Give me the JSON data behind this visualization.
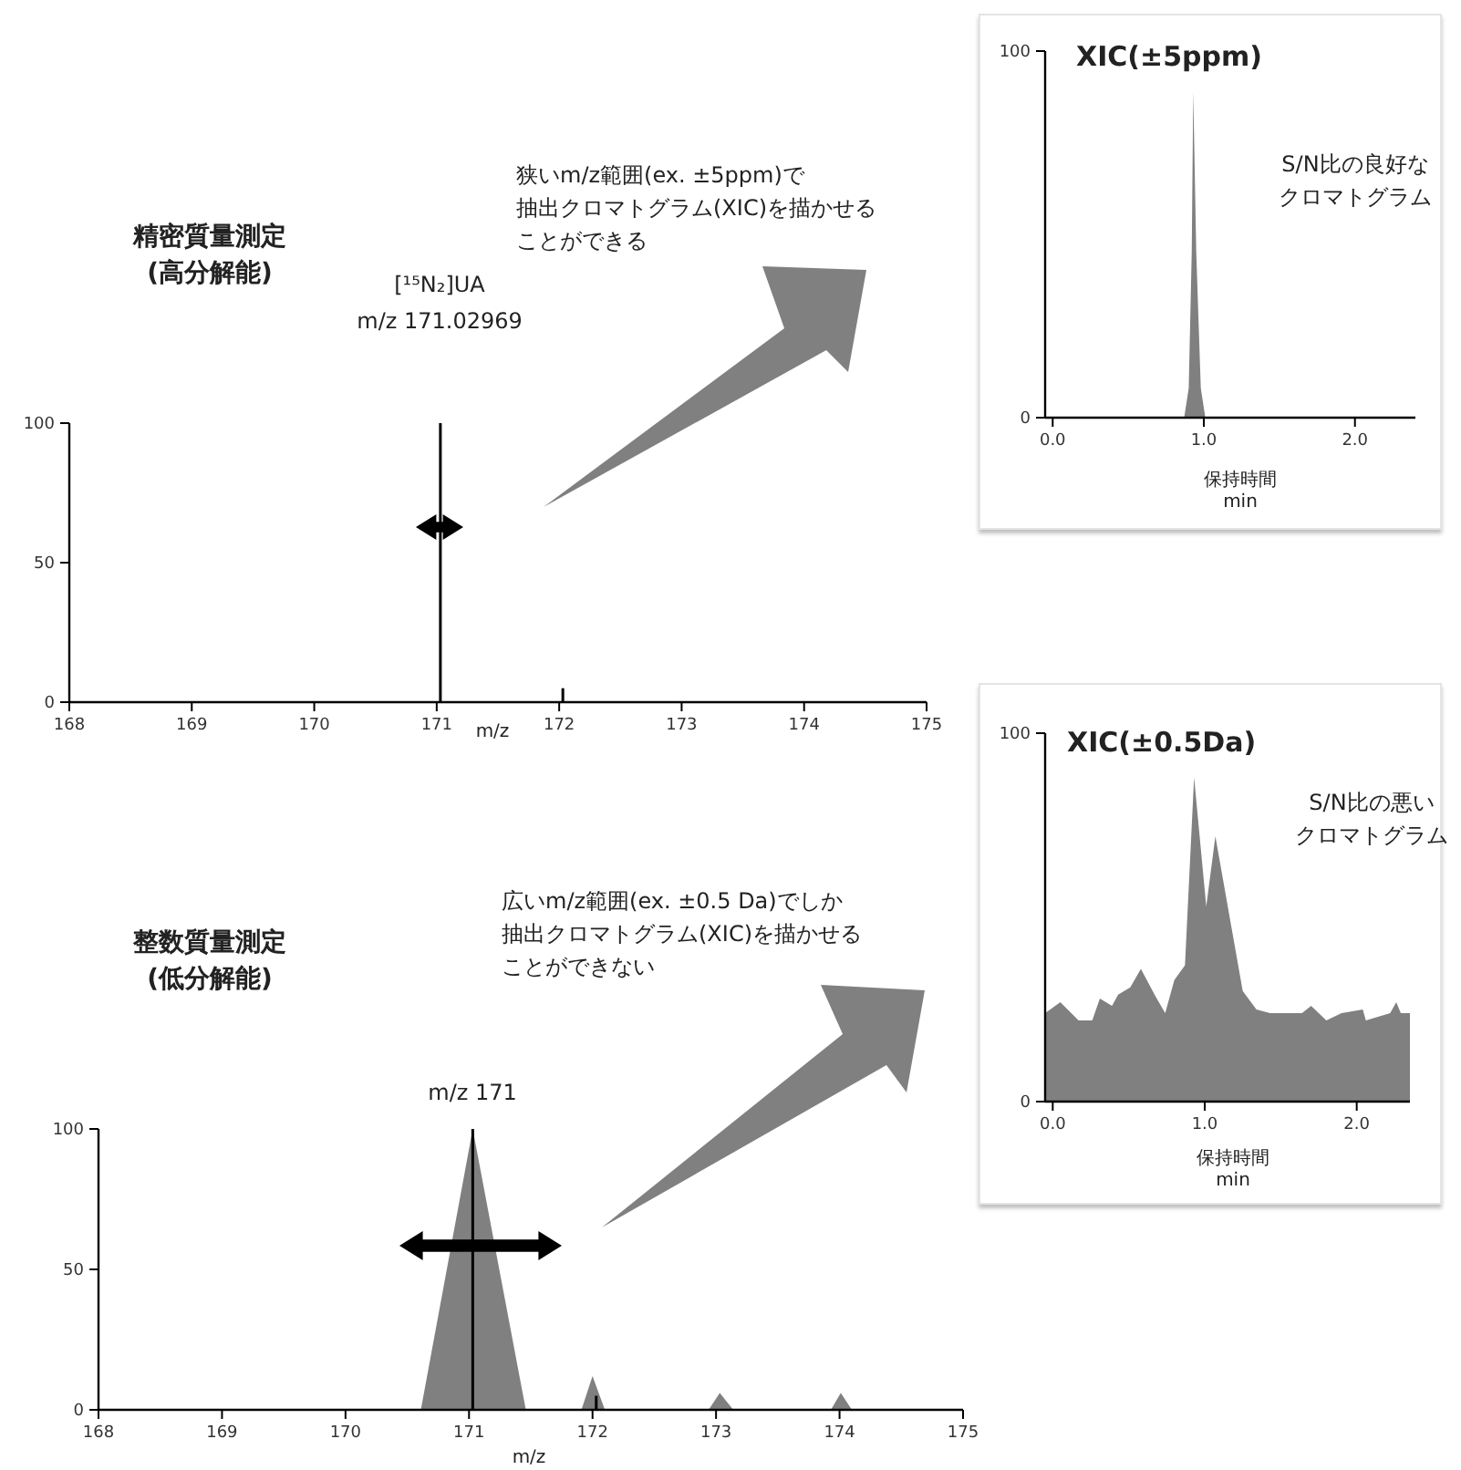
{
  "chart_data": [
    {
      "type": "bar",
      "title": "精密質量測定",
      "subtitle": "(高分解能)",
      "xlabel": "m/z",
      "x": [
        171.03,
        172.03
      ],
      "values": [
        100,
        5
      ],
      "color": "#000000",
      "xlim": [
        168,
        175
      ],
      "xticks": [
        168,
        169,
        170,
        171,
        172,
        173,
        174,
        175
      ],
      "ylim": [
        0,
        100
      ],
      "yticks": [
        0,
        50,
        100
      ],
      "annotations": [
        "[¹⁵N₂]UA",
        "m/z 171.02969",
        "狭いm/z範囲(ex. ±5ppm)で抽出クロマトグラム(XIC)を描かせることができる"
      ]
    },
    {
      "type": "area",
      "title": "XIC(±5ppm)",
      "xlabel": "保持時間\nmin",
      "x": [
        -0.05,
        0.87,
        0.9,
        0.92,
        0.93,
        0.95,
        0.98,
        1.01,
        2.4
      ],
      "values": [
        0,
        0,
        8,
        45,
        89,
        45,
        8,
        0,
        0
      ],
      "color": "#808080",
      "xlim": [
        -0.05,
        2.4
      ],
      "xticks": [
        {
          "value": 0,
          "label": "0.0"
        },
        {
          "value": 1,
          "label": "1.0"
        },
        {
          "value": 2,
          "label": "2.0"
        }
      ],
      "ylim": [
        0,
        100
      ],
      "yticks": [
        0,
        100
      ],
      "annotations": [
        "S/N比の良好なクロマトグラム"
      ]
    },
    {
      "type": "area",
      "title": "整数質量測定",
      "subtitle": "(低分解能)",
      "xlabel": "m/z",
      "xlim": [
        168,
        175
      ],
      "xticks": [
        168,
        169,
        170,
        171,
        172,
        173,
        174,
        175
      ],
      "ylim": [
        0,
        100
      ],
      "yticks": [
        0,
        50,
        100
      ],
      "series": [
        {
          "color": "#808080",
          "x": [
            170.61,
            171.03,
            171.46,
            171.91,
            172.0,
            172.1,
            172.94,
            173.03,
            173.14,
            173.93,
            174.01,
            174.1
          ],
          "values": [
            0,
            100,
            0,
            0,
            12,
            0,
            0,
            6,
            0,
            0,
            6,
            0
          ]
        },
        {
          "type": "bar",
          "color": "#000000",
          "x": [
            171.03,
            172.03
          ],
          "values": [
            100,
            5
          ]
        }
      ],
      "annotations": [
        "m/z 171",
        "広いm/z範囲(ex. ±0.5 Da)でしか抽出クロマトグラム(XIC)を描かせることができない"
      ]
    },
    {
      "type": "area",
      "title": "XIC(±0.5Da)",
      "xlabel": "保持時間\nmin",
      "x": [
        -0.05,
        0.05,
        0.17,
        0.26,
        0.31,
        0.39,
        0.43,
        0.51,
        0.58,
        0.67,
        0.74,
        0.8,
        0.87,
        0.93,
        1.01,
        1.07,
        1.25,
        1.34,
        1.43,
        1.64,
        1.7,
        1.8,
        1.9,
        2.04,
        2.06,
        2.22,
        2.26,
        2.29,
        2.35
      ],
      "values": [
        24,
        27,
        22,
        22,
        28,
        26,
        29,
        31,
        36,
        29,
        24,
        33,
        37,
        88,
        53,
        72,
        30,
        25,
        24,
        24,
        26,
        22,
        24,
        25,
        22,
        24,
        27,
        24,
        24
      ],
      "color": "#808080",
      "xlim": [
        -0.05,
        2.35
      ],
      "xticks": [
        {
          "value": 0,
          "label": "0.0"
        },
        {
          "value": 1,
          "label": "1.0"
        },
        {
          "value": 2,
          "label": "2.0"
        }
      ],
      "ylim": [
        0,
        100
      ],
      "yticks": [
        0,
        100
      ],
      "annotations": [
        "S/N比の悪いクロマトグラム"
      ]
    }
  ]
}
